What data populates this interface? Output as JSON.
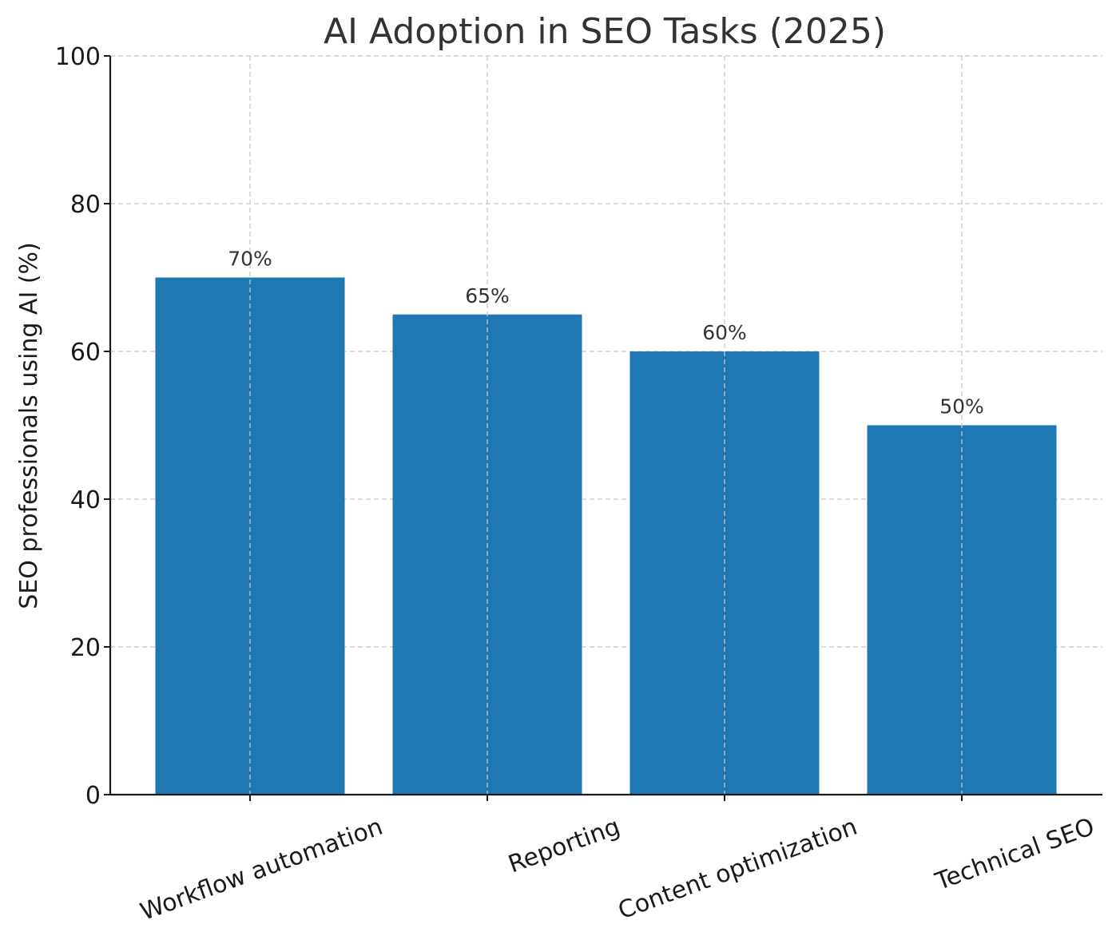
{
  "chart_data": {
    "type": "bar",
    "title": "AI Adoption in SEO Tasks (2025)",
    "xlabel": "",
    "ylabel": "SEO professionals using AI (%)",
    "categories": [
      "Workflow automation",
      "Reporting",
      "Content optimization",
      "Technical SEO"
    ],
    "values": [
      70,
      65,
      60,
      50
    ],
    "data_labels": [
      "70%",
      "65%",
      "60%",
      "50%"
    ],
    "ylim": [
      0,
      100
    ],
    "yticks": [
      0,
      20,
      40,
      60,
      80,
      100
    ],
    "grid": true,
    "colors": {
      "bar": "#1f77b4"
    }
  }
}
